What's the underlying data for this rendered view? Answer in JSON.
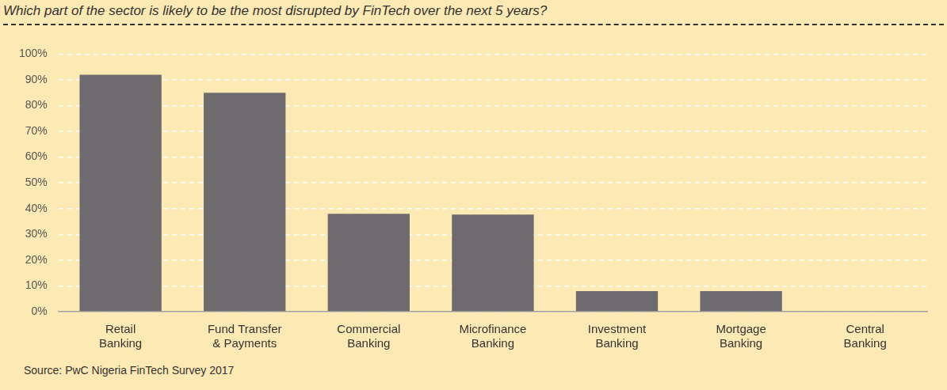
{
  "chart_data": {
    "type": "bar",
    "title": "Which part of the sector is likely to be the most disrupted by FinTech over the next 5 years?",
    "source": "Source: PwC Nigeria FinTech Survey 2017",
    "categories": [
      "Retail Banking",
      "Fund Transfer & Payments",
      "Commercial Banking",
      "Microfinance Banking",
      "Investment Banking",
      "Mortgage Banking",
      "Central Banking"
    ],
    "values": [
      92,
      85,
      38,
      37.7,
      8,
      8,
      0
    ],
    "color": "#6d6b6e",
    "ylim": [
      0,
      100
    ],
    "yticks": [
      {
        "value": 0,
        "label": "0%"
      },
      {
        "value": 10,
        "label": "10%"
      },
      {
        "value": 20,
        "label": "20%"
      },
      {
        "value": 30,
        "label": "30%"
      },
      {
        "value": 40,
        "label": "40%"
      },
      {
        "value": 50,
        "label": "50%"
      },
      {
        "value": 60,
        "label": "60%"
      },
      {
        "value": 70,
        "label": "70%"
      },
      {
        "value": 80,
        "label": "80%"
      },
      {
        "value": 90,
        "label": "90%"
      },
      {
        "value": 100,
        "label": "100%"
      }
    ],
    "grid": true,
    "data_labels": false
  }
}
